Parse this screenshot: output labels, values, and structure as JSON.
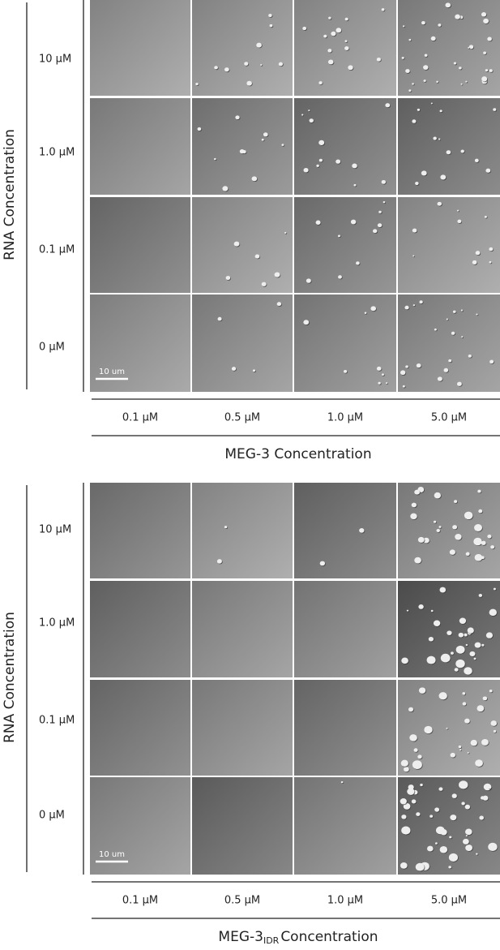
{
  "panels": [
    {
      "y_axis_label": "RNA Concentration",
      "row_labels": [
        "10 µM",
        "1.0 µM",
        "0.1 µM",
        "0 µM"
      ],
      "column_labels": [
        "0.1 µM",
        "0.5 µM",
        "1.0 µM",
        "5.0 µM"
      ],
      "scale_bar": "10 um",
      "x_axis_label": {
        "main": "MEG-3  Concentration"
      }
    },
    {
      "y_axis_label": "RNA Concentration",
      "row_labels": [
        "10 µM",
        "1.0 µM",
        "0.1 µM",
        "0 µM"
      ],
      "column_labels": [
        "0.1 µM",
        "0.5 µM",
        "1.0 µM",
        "5.0 µM"
      ],
      "scale_bar": "10 um",
      "x_axis_label": {
        "main": "MEG-3",
        "subscript": "IDR",
        "suffix": "Concentration"
      }
    }
  ]
}
